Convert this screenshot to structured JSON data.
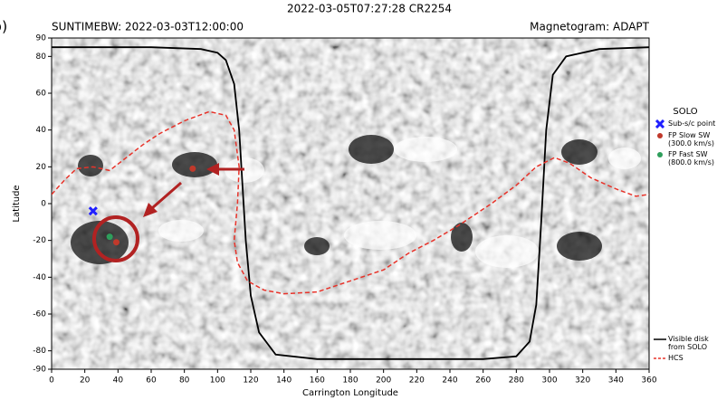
{
  "chart_data": {
    "type": "scatter",
    "title": "2022-03-05T07:27:28 CR2254",
    "subtitle_left": "SUNTIMEBW: 2022-03-03T12:00:00",
    "subtitle_right": "Magnetogram: ADAPT",
    "panel_label": "b)",
    "x_label": "Carrington Longitude",
    "y_label": "Latitude",
    "legend_title": "SOLO",
    "xlim": [
      0,
      360
    ],
    "ylim": [
      -90,
      90
    ],
    "xticks": [
      0,
      20,
      40,
      60,
      80,
      100,
      120,
      140,
      160,
      180,
      200,
      220,
      240,
      260,
      280,
      300,
      320,
      340,
      360
    ],
    "yticks": [
      -90,
      -80,
      -60,
      -40,
      -20,
      0,
      20,
      40,
      60,
      80,
      90
    ],
    "series": [
      {
        "name": "Sub-s/c point",
        "color": "#1f1fff",
        "marker": "x",
        "x": [
          25
        ],
        "values": [
          -4
        ]
      },
      {
        "name": "FP Slow SW (300.0 km/s)",
        "color": "#c0392b",
        "marker": "circle",
        "x": [
          39,
          85
        ],
        "values": [
          -21,
          19
        ]
      },
      {
        "name": "FP Fast SW (800.0 km/s)",
        "color": "#2e9e5b",
        "marker": "circle",
        "x": [
          35
        ],
        "values": [
          -18
        ]
      },
      {
        "name": "Visible disk from SOLO",
        "color": "#000000",
        "marker": "line",
        "x": [
          0,
          60,
          90,
          100,
          105,
          110,
          113,
          115,
          117,
          120,
          125,
          135,
          160,
          200,
          260,
          280,
          288,
          292,
          295,
          298,
          302,
          310,
          330,
          360
        ],
        "values": [
          85,
          85,
          84,
          82,
          78,
          65,
          40,
          10,
          -20,
          -50,
          -70,
          -82,
          -84.5,
          -84.5,
          -84.5,
          -83,
          -75,
          -55,
          -10,
          40,
          70,
          80,
          84,
          85
        ]
      },
      {
        "name": "HCS",
        "color": "#e8332a",
        "marker": "dashed",
        "x": [
          0,
          8,
          15,
          25,
          35,
          45,
          55,
          65,
          80,
          95,
          105,
          110,
          113,
          112,
          110,
          112,
          118,
          128,
          140,
          160,
          180,
          200,
          215,
          230,
          245,
          255,
          265,
          280,
          292,
          303,
          312,
          325,
          340,
          352,
          360
        ],
        "values": [
          5,
          13,
          19,
          20,
          18,
          25,
          32,
          38,
          45,
          50,
          48,
          40,
          20,
          0,
          -20,
          -32,
          -42,
          -47,
          -49,
          -48,
          -42,
          -36,
          -27,
          -20,
          -12,
          -6,
          0,
          10,
          20,
          25,
          22,
          14,
          8,
          4,
          5
        ]
      }
    ]
  }
}
